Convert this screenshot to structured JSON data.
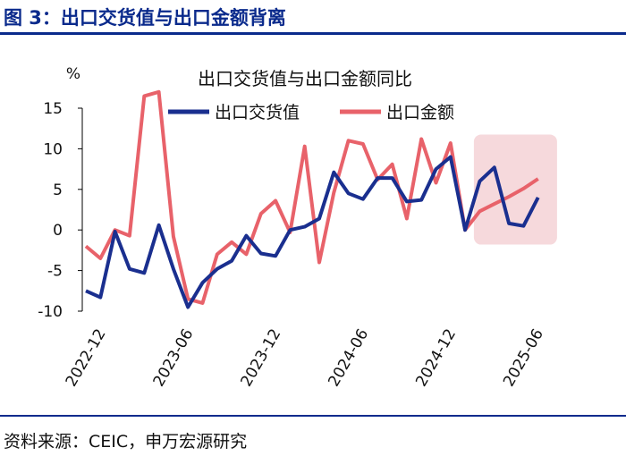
{
  "figure": {
    "label": "图 3：出口交货值与出口金额背离",
    "source": "资料来源：CEIC，申万宏源研究"
  },
  "colors": {
    "accent": "#0a2a8c",
    "series1": "#1a2f8f",
    "series2": "#e8626a",
    "highlight": "#f6d9dc"
  },
  "chart_data": {
    "type": "line",
    "title": "出口交货值与出口金额同比",
    "unit_label": "%",
    "ylim": [
      -10,
      15
    ],
    "yticks": [
      15,
      10,
      5,
      0,
      -5,
      -10
    ],
    "xticks": [
      {
        "x": 0,
        "label": "2022-12"
      },
      {
        "x": 6,
        "label": "2023-06"
      },
      {
        "x": 12,
        "label": "2023-12"
      },
      {
        "x": 18,
        "label": "2024-06"
      },
      {
        "x": 24,
        "label": "2024-12"
      },
      {
        "x": 30,
        "label": "2025-06"
      }
    ],
    "x_first": -1,
    "x_last": 31,
    "grid": false,
    "legend": "top-right",
    "highlight_range": [
      25.6,
      31.3
    ],
    "series": [
      {
        "name": "出口交货值",
        "x": [
          -1,
          0,
          1,
          2,
          3,
          4,
          5,
          6,
          7,
          8,
          9,
          10,
          11,
          12,
          13,
          14,
          15,
          16,
          17,
          18,
          19,
          20,
          21,
          22,
          23,
          24,
          25,
          26,
          27,
          28,
          29,
          30
        ],
        "values": [
          -7.5,
          -8.3,
          -0.2,
          -4.8,
          -5.3,
          0.6,
          -4.8,
          -9.5,
          -6.5,
          -4.8,
          -3.8,
          -0.7,
          -2.9,
          -3.2,
          0.0,
          0.4,
          1.4,
          7.1,
          4.5,
          3.8,
          6.4,
          6.4,
          3.5,
          3.7,
          7.5,
          9.0,
          0.0,
          6.0,
          7.7,
          0.8,
          0.5,
          4.0
        ]
      },
      {
        "name": "出口金额",
        "x": [
          -1,
          0,
          1,
          2,
          3,
          4,
          5,
          6,
          7,
          8,
          9,
          10,
          11,
          12,
          13,
          14,
          15,
          16,
          17,
          18,
          19,
          20,
          21,
          22,
          23,
          24,
          25,
          26,
          27,
          28,
          29,
          30
        ],
        "values": [
          -2.0,
          -3.5,
          0.0,
          -0.7,
          16.5,
          17.0,
          -0.8,
          -8.5,
          -9.0,
          -3.0,
          -1.5,
          -3.0,
          2.0,
          3.6,
          -0.3,
          10.3,
          -4.0,
          4.6,
          11.0,
          10.6,
          6.2,
          8.1,
          1.4,
          11.2,
          5.8,
          10.7,
          0.0,
          2.3,
          3.2,
          4.1,
          5.1,
          6.3
        ]
      }
    ]
  }
}
